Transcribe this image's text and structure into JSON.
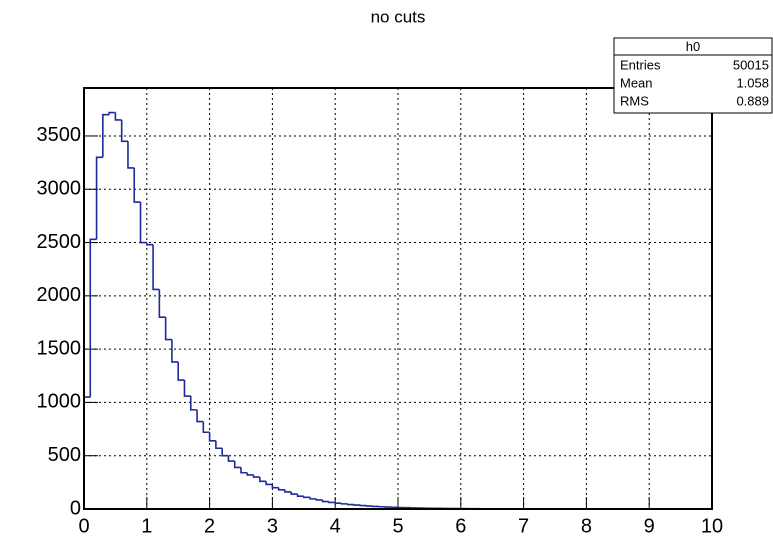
{
  "chart_data": {
    "type": "histogram",
    "title": "no cuts",
    "bins": [
      0,
      0.1,
      0.2,
      0.3,
      0.4,
      0.5,
      0.6,
      0.7,
      0.8,
      0.9,
      1,
      1.1,
      1.2,
      1.3,
      1.4,
      1.5,
      1.6,
      1.7,
      1.8,
      1.9,
      2,
      2.1,
      2.2,
      2.3,
      2.4,
      2.5,
      2.6,
      2.7,
      2.8,
      2.9,
      3,
      3.1,
      3.2,
      3.3,
      3.4,
      3.5,
      3.6,
      3.7,
      3.8,
      3.9,
      4,
      4.1,
      4.2,
      4.3,
      4.4,
      4.5,
      4.6,
      4.7,
      4.8,
      4.9,
      5,
      5.1,
      5.2,
      5.3,
      5.4,
      5.5,
      5.6,
      5.7,
      5.8,
      5.9,
      6,
      6.1,
      6.2,
      6.3,
      6.4,
      6.5,
      6.6,
      6.7,
      6.8,
      6.9,
      7,
      7.1,
      7.2,
      7.3,
      7.4,
      7.5,
      7.6,
      7.7,
      7.8,
      7.9,
      8,
      8.1,
      8.2,
      8.3,
      8.4,
      8.5,
      8.6,
      8.7,
      8.8,
      8.9,
      9,
      9.1,
      9.2,
      9.3,
      9.4,
      9.5,
      9.6,
      9.7,
      9.8,
      9.9,
      10
    ],
    "values": [
      1050,
      2530,
      3300,
      3700,
      3720,
      3650,
      3450,
      3200,
      2880,
      2500,
      2480,
      2060,
      1800,
      1590,
      1380,
      1210,
      1060,
      930,
      820,
      720,
      640,
      570,
      500,
      450,
      390,
      340,
      320,
      300,
      260,
      230,
      200,
      180,
      160,
      140,
      120,
      110,
      95,
      85,
      70,
      62,
      55,
      48,
      42,
      37,
      32,
      28,
      24,
      21,
      18,
      16,
      14,
      12,
      10,
      9,
      8,
      7,
      6,
      5,
      5,
      4,
      4,
      3,
      3,
      2,
      2,
      2,
      2,
      1,
      1,
      1,
      1,
      1,
      1,
      0,
      1,
      0,
      0,
      1,
      0,
      0,
      0,
      0,
      0,
      0,
      0,
      0,
      0,
      0,
      0,
      0,
      0,
      0,
      0,
      0,
      0,
      0,
      0,
      0,
      0,
      0
    ],
    "color": "#1c2a9c",
    "xlim": [
      0,
      10
    ],
    "xticks": [
      0,
      1,
      2,
      3,
      4,
      5,
      6,
      7,
      8,
      9,
      10
    ],
    "ylim": [
      0,
      3950
    ],
    "yticks": [
      0,
      500,
      1000,
      1500,
      2000,
      2500,
      3000,
      3500
    ],
    "grid": true,
    "stats": {
      "title": "h0",
      "rows": [
        [
          "Entries",
          50015
        ],
        [
          "Mean",
          1.058
        ],
        [
          "RMS",
          0.889
        ]
      ]
    }
  }
}
